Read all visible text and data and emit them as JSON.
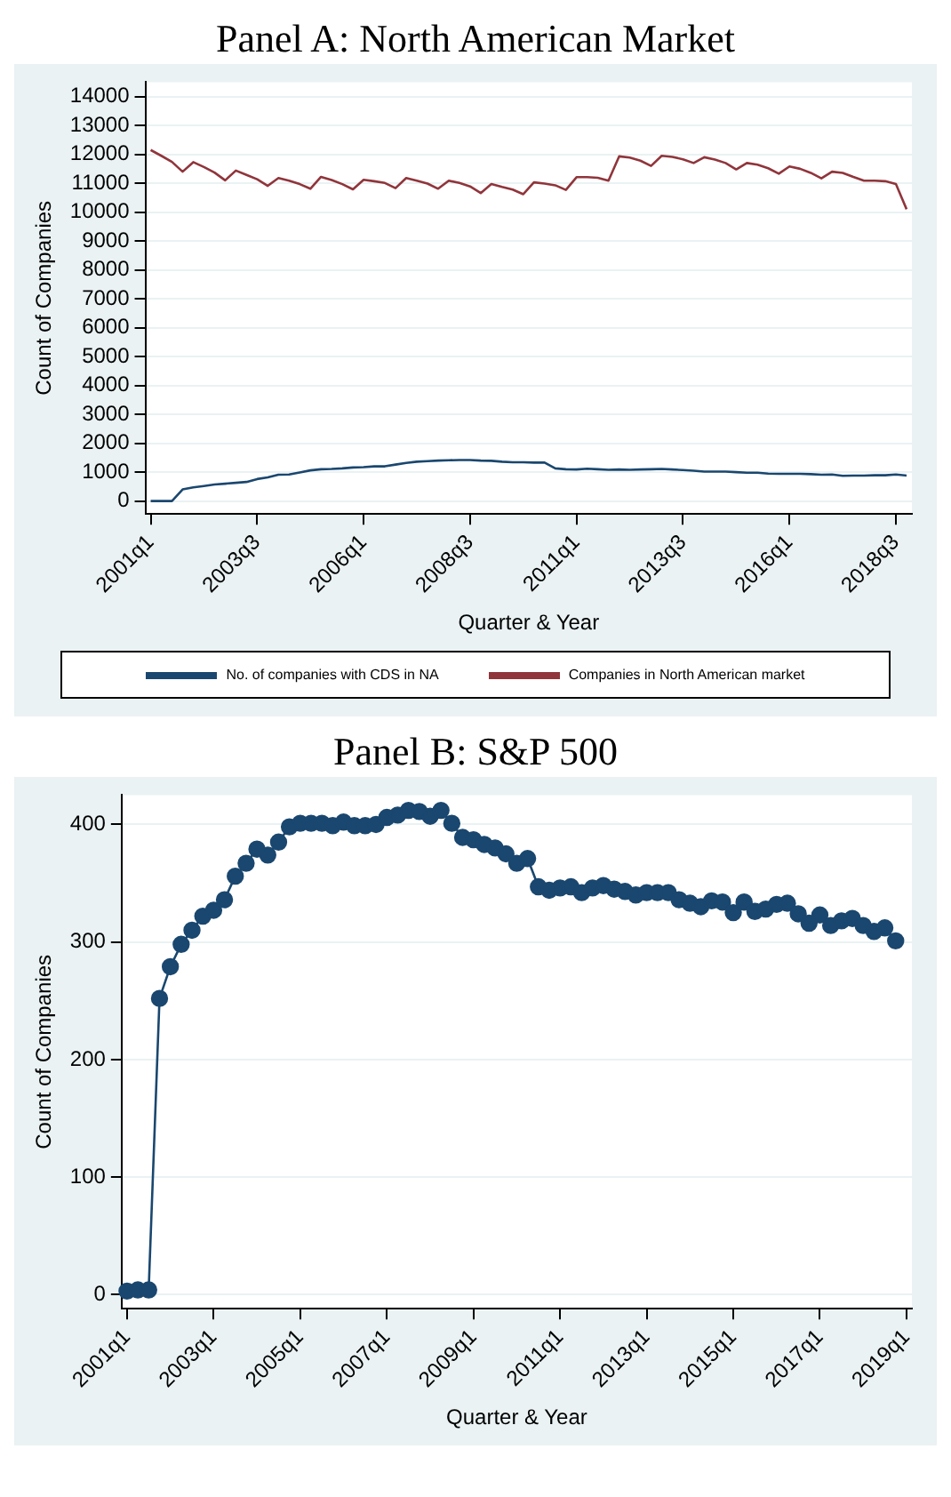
{
  "chart_data": [
    {
      "type": "line",
      "title": "Panel A: North American Market",
      "xlabel": "Quarter & Year",
      "ylabel": "Count of Companies",
      "categories": [
        "2001q1",
        null,
        null,
        null,
        null,
        null,
        null,
        null,
        null,
        null,
        "2003q3",
        null,
        null,
        null,
        null,
        null,
        null,
        null,
        null,
        null,
        "2006q1",
        null,
        null,
        null,
        null,
        null,
        null,
        null,
        null,
        null,
        "2008q3",
        null,
        null,
        null,
        null,
        null,
        null,
        null,
        null,
        null,
        "2011q1",
        null,
        null,
        null,
        null,
        null,
        null,
        null,
        null,
        null,
        "2013q3",
        null,
        null,
        null,
        null,
        null,
        null,
        null,
        null,
        null,
        "2016q1",
        null,
        null,
        null,
        null,
        null,
        null,
        null,
        null,
        null,
        "2018q3",
        null
      ],
      "series": [
        {
          "name": "No. of companies with CDS in NA",
          "color": "#1a476f",
          "values": [
            0,
            0,
            0,
            400,
            470,
            520,
            570,
            600,
            630,
            660,
            760,
            820,
            910,
            920,
            990,
            1060,
            1100,
            1110,
            1130,
            1160,
            1170,
            1200,
            1200,
            1260,
            1320,
            1360,
            1380,
            1400,
            1410,
            1420,
            1420,
            1400,
            1390,
            1360,
            1340,
            1340,
            1330,
            1330,
            1130,
            1100,
            1090,
            1120,
            1100,
            1080,
            1090,
            1080,
            1090,
            1100,
            1110,
            1090,
            1070,
            1050,
            1020,
            1020,
            1020,
            1000,
            980,
            980,
            950,
            940,
            940,
            940,
            930,
            910,
            920,
            870,
            880,
            880,
            890,
            890,
            920,
            880
          ]
        },
        {
          "name": "Companies in North American market",
          "color": "#90353b",
          "values": [
            12150,
            11950,
            11740,
            11400,
            11730,
            11560,
            11370,
            11100,
            11440,
            11290,
            11140,
            10910,
            11180,
            11090,
            10970,
            10810,
            11220,
            11110,
            10970,
            10790,
            11120,
            11070,
            11010,
            10830,
            11180,
            11090,
            10990,
            10810,
            11090,
            11010,
            10890,
            10660,
            10970,
            10870,
            10780,
            10620,
            11030,
            10990,
            10930,
            10770,
            11210,
            11210,
            11190,
            11090,
            11930,
            11890,
            11780,
            11600,
            11950,
            11910,
            11830,
            11700,
            11900,
            11820,
            11700,
            11480,
            11700,
            11640,
            11520,
            11330,
            11580,
            11500,
            11360,
            11170,
            11400,
            11360,
            11220,
            11090,
            11090,
            11070,
            10970,
            10100
          ]
        }
      ],
      "ylim": [
        -450,
        14500
      ],
      "yticks": [
        0,
        1000,
        2000,
        3000,
        4000,
        5000,
        6000,
        7000,
        8000,
        9000,
        10000,
        11000,
        12000,
        13000,
        14000
      ],
      "grid": "y",
      "legend": "bottom",
      "marker": "none"
    },
    {
      "type": "line",
      "title": "Panel B: S&P 500",
      "xlabel": "Quarter & Year",
      "ylabel": "Count of Companies",
      "categories": [
        "2001q1",
        null,
        null,
        null,
        null,
        null,
        null,
        null,
        "2003q1",
        null,
        null,
        null,
        null,
        null,
        null,
        null,
        "2005q1",
        null,
        null,
        null,
        null,
        null,
        null,
        null,
        "2007q1",
        null,
        null,
        null,
        null,
        null,
        null,
        null,
        "2009q1",
        null,
        null,
        null,
        null,
        null,
        null,
        null,
        "2011q1",
        null,
        null,
        null,
        null,
        null,
        null,
        null,
        "2013q1",
        null,
        null,
        null,
        null,
        null,
        null,
        null,
        "2015q1",
        null,
        null,
        null,
        null,
        null,
        null,
        null,
        "2017q1",
        null,
        null,
        null,
        null,
        null,
        null,
        null,
        "2019q1"
      ],
      "series": [
        {
          "color": "#1a476f",
          "values": [
            3,
            4,
            4,
            252,
            279,
            298,
            310,
            322,
            327,
            336,
            356,
            367,
            379,
            374,
            385,
            398,
            401,
            401,
            401,
            399,
            402,
            399,
            399,
            400,
            406,
            408,
            412,
            411,
            407,
            412,
            401,
            389,
            387,
            383,
            380,
            375,
            367,
            371,
            347,
            344,
            346,
            347,
            342,
            346,
            348,
            345,
            343,
            340,
            342,
            342,
            342,
            336,
            333,
            330,
            335,
            334,
            325,
            334,
            326,
            328,
            332,
            333,
            324,
            316,
            323,
            314,
            318,
            320,
            314,
            309,
            312,
            301,
            null
          ]
        }
      ],
      "ylim": [
        -12,
        425
      ],
      "yticks": [
        0,
        100,
        200,
        300,
        400
      ],
      "grid": "y",
      "marker": "circle"
    }
  ]
}
